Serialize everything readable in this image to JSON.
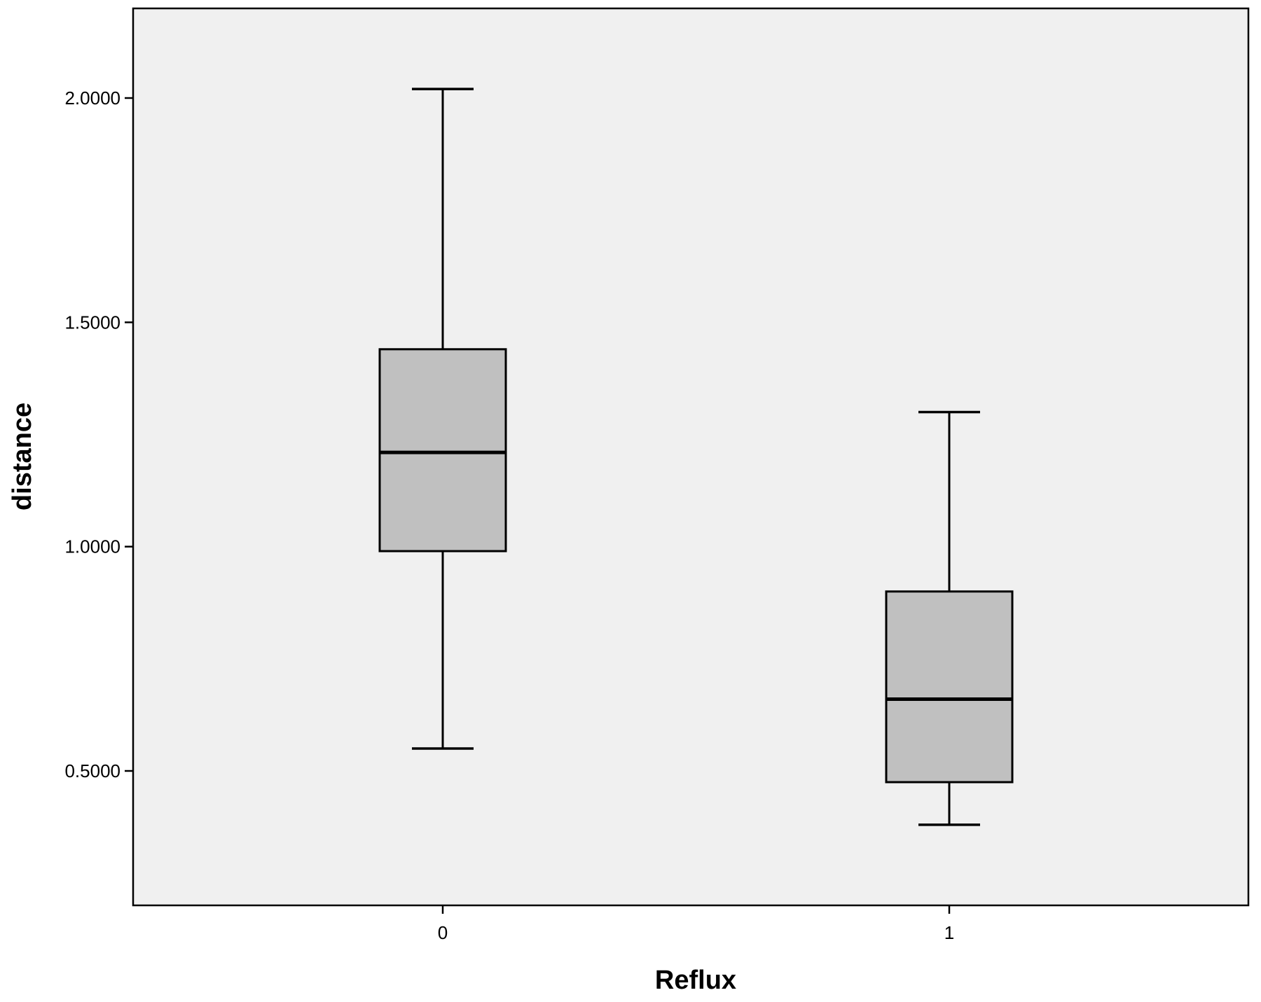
{
  "chart_data": {
    "type": "boxplot",
    "xlabel": "Reflux",
    "ylabel": "distance",
    "categories": [
      "0",
      "1"
    ],
    "yticks": [
      "0.5000",
      "1.0000",
      "1.5000",
      "2.0000"
    ],
    "ylim": [
      0.3,
      2.2
    ],
    "grid": false,
    "boxes": [
      {
        "category": "0",
        "whisker_low": 0.55,
        "q1": 0.99,
        "median": 1.21,
        "q3": 1.44,
        "whisker_high": 2.02
      },
      {
        "category": "1",
        "whisker_low": 0.38,
        "q1": 0.475,
        "median": 0.66,
        "q3": 0.9,
        "whisker_high": 1.3
      }
    ],
    "colors": {
      "plot_background": "#f0f0f0",
      "box_fill": "#c0c0c0",
      "stroke": "#000000"
    }
  }
}
